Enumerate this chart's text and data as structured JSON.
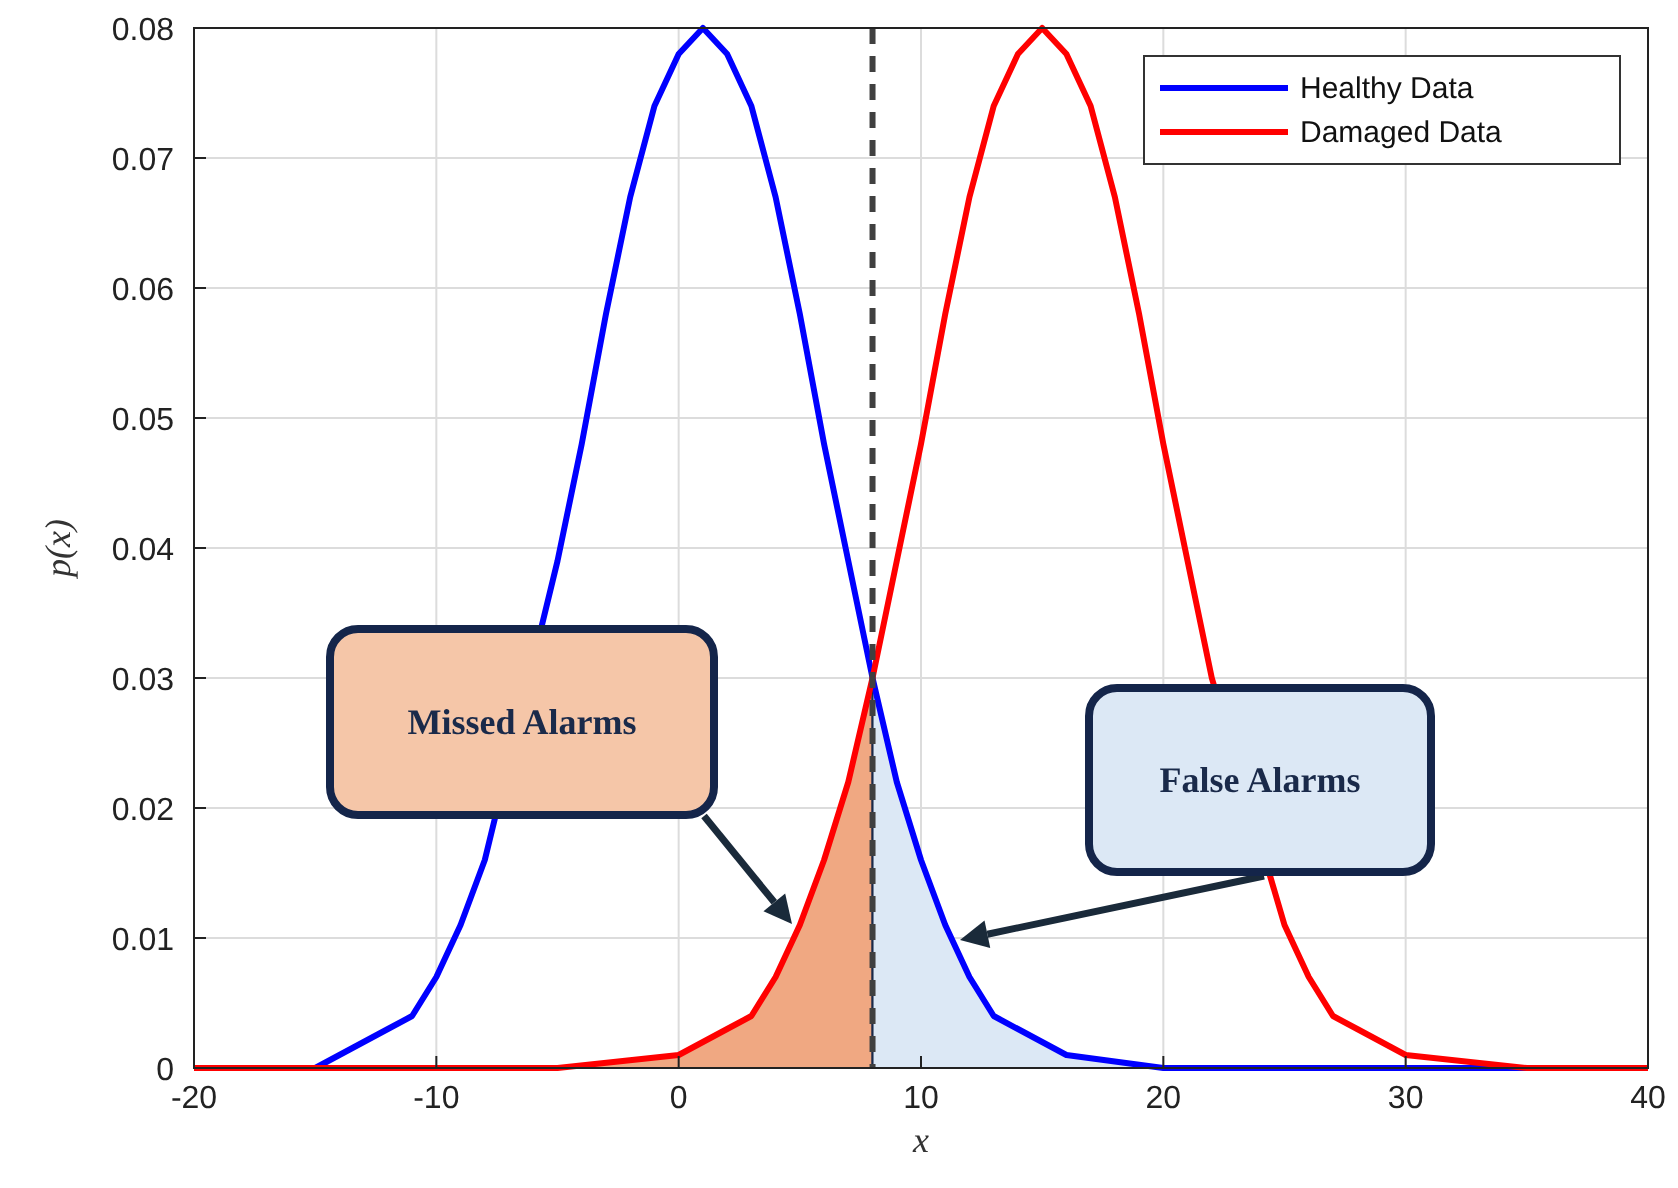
{
  "chart_data": {
    "type": "line",
    "xlabel": "x",
    "ylabel": "p(x)",
    "xlim": [
      -20,
      40
    ],
    "xticks": [
      -20,
      -10,
      0,
      10,
      20,
      30,
      40
    ],
    "ylim": [
      0,
      0.08
    ],
    "yticks": [
      0,
      0.01,
      0.02,
      0.03,
      0.04,
      0.05,
      0.06,
      0.07,
      0.08
    ],
    "grid": true,
    "legend": "top right",
    "line_style": "solid",
    "marker": "none",
    "series": [
      {
        "type": "area",
        "color": "#f0a882",
        "x": [
          -5,
          0,
          1,
          2,
          3,
          4,
          5,
          6,
          7,
          8
        ],
        "values": [
          0,
          0.001,
          0.002,
          0.003,
          0.004,
          0.007,
          0.011,
          0.016,
          0.022,
          0.03
        ]
      },
      {
        "type": "area",
        "color": "#dce8f5",
        "x": [
          8,
          9,
          10,
          11,
          12,
          13,
          14,
          15,
          16,
          20
        ],
        "values": [
          0.03,
          0.022,
          0.016,
          0.011,
          0.007,
          0.004,
          0.003,
          0.002,
          0.001,
          0
        ]
      },
      {
        "name": "Healthy Data",
        "color": "#0000ff",
        "x": [
          -20,
          -15,
          -14,
          -13,
          -12,
          -11,
          -10,
          -9,
          -8,
          -7,
          -6,
          -5,
          -4,
          -3,
          -2,
          -1,
          0,
          1,
          2,
          3,
          4,
          5,
          6,
          7,
          8,
          9,
          10,
          11,
          12,
          13,
          14,
          15,
          16,
          20,
          25,
          30,
          35,
          40
        ],
        "values": [
          0,
          0,
          0.001,
          0.002,
          0.003,
          0.004,
          0.007,
          0.011,
          0.016,
          null,
          null,
          0.039,
          0.048,
          0.058,
          0.067,
          0.074,
          0.078,
          0.08,
          0.078,
          0.074,
          0.067,
          0.058,
          0.048,
          0.039,
          0.03,
          0.022,
          0.016,
          0.011,
          0.007,
          0.004,
          0.003,
          0.002,
          0.001,
          0,
          0,
          0,
          0,
          0
        ]
      },
      {
        "name": "Damaged Data",
        "color": "#ff0000",
        "x": [
          -20,
          -15,
          -10,
          -5,
          0,
          1,
          2,
          3,
          4,
          5,
          6,
          7,
          8,
          9,
          10,
          11,
          12,
          13,
          14,
          15,
          16,
          17,
          18,
          19,
          20,
          21,
          22,
          23,
          24,
          25,
          26,
          27,
          28,
          29,
          30,
          35,
          40
        ],
        "values": [
          0,
          0,
          0,
          0,
          0.001,
          0.002,
          0.003,
          0.004,
          0.007,
          0.011,
          0.016,
          0.022,
          0.03,
          0.039,
          0.048,
          0.058,
          0.067,
          0.074,
          0.078,
          0.08,
          0.078,
          0.074,
          0.067,
          0.058,
          0.048,
          0.039,
          0.03,
          null,
          null,
          0.011,
          0.007,
          0.004,
          0.003,
          0.002,
          0.001,
          0,
          0
        ]
      }
    ],
    "ref_lines": [
      {
        "axis": "x",
        "value": 8,
        "color": "#404040",
        "line_style": "dashed"
      }
    ],
    "annotations": [
      "Missed Alarms",
      "False Alarms"
    ]
  }
}
